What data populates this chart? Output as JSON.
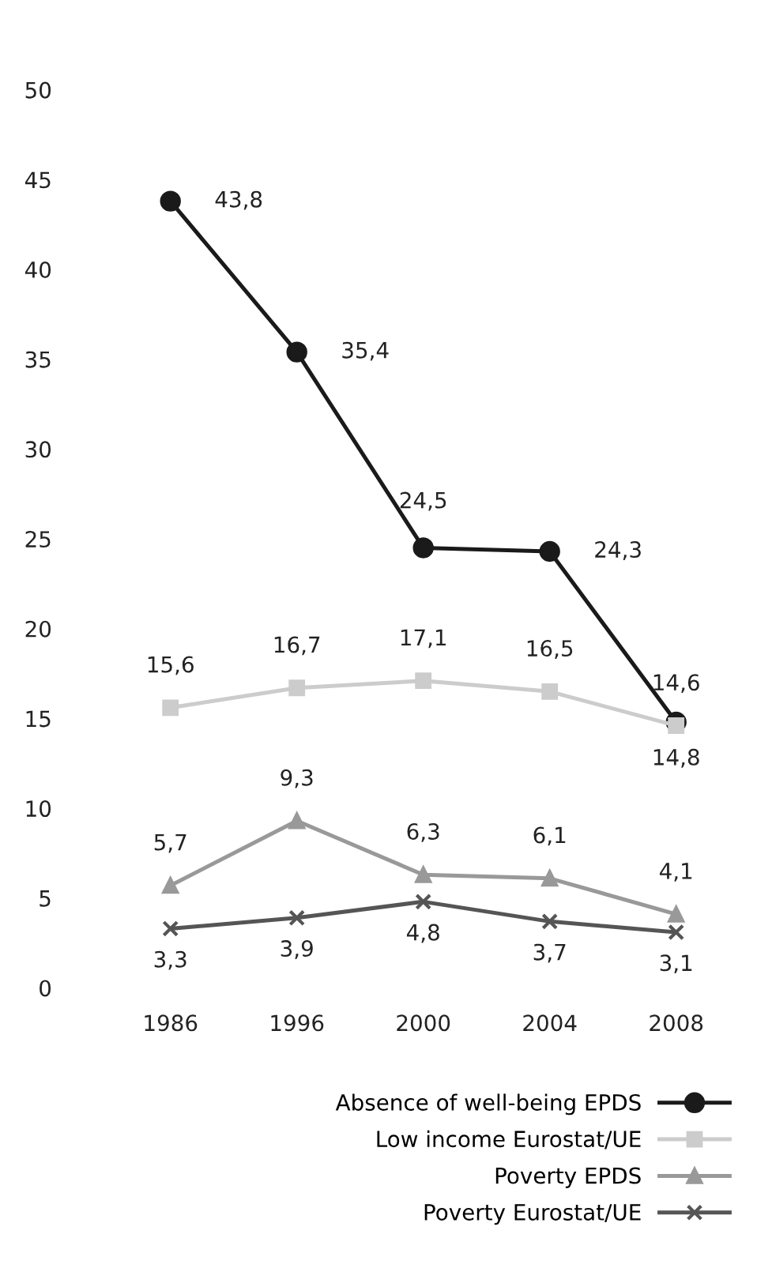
{
  "chart_data": {
    "type": "line",
    "categories": [
      "1986",
      "1996",
      "2000",
      "2004",
      "2008"
    ],
    "series": [
      {
        "name": "Absence of well-being EPDS",
        "color": "#1a1a1a",
        "marker": "circle",
        "values": [
          43.8,
          35.4,
          24.5,
          24.3,
          14.8
        ],
        "value_labels": [
          "43,8",
          "35,4",
          "24,5",
          "24,3",
          "14,8"
        ]
      },
      {
        "name": "Low income Eurostat/UE",
        "color": "#cccccc",
        "marker": "square",
        "values": [
          15.6,
          16.7,
          17.1,
          16.5,
          14.6
        ],
        "value_labels": [
          "15,6",
          "16,7",
          "17,1",
          "16,5",
          "14,6"
        ]
      },
      {
        "name": "Poverty EPDS",
        "color": "#999999",
        "marker": "triangle",
        "values": [
          5.7,
          9.3,
          6.3,
          6.1,
          4.1
        ],
        "value_labels": [
          "5,7",
          "9,3",
          "6,3",
          "6,1",
          "4,1"
        ]
      },
      {
        "name": "Poverty Eurostat/UE",
        "color": "#555555",
        "marker": "cross",
        "values": [
          3.3,
          3.9,
          4.8,
          3.7,
          3.1
        ],
        "value_labels": [
          "3,3",
          "3,9",
          "4,8",
          "3,7",
          "3,1"
        ]
      }
    ],
    "ylim": [
      0,
      50
    ],
    "yticks": [
      0,
      5,
      10,
      15,
      20,
      25,
      30,
      35,
      40,
      45,
      50
    ],
    "grid": false,
    "legend": "bottom right",
    "line_style": "solid"
  }
}
